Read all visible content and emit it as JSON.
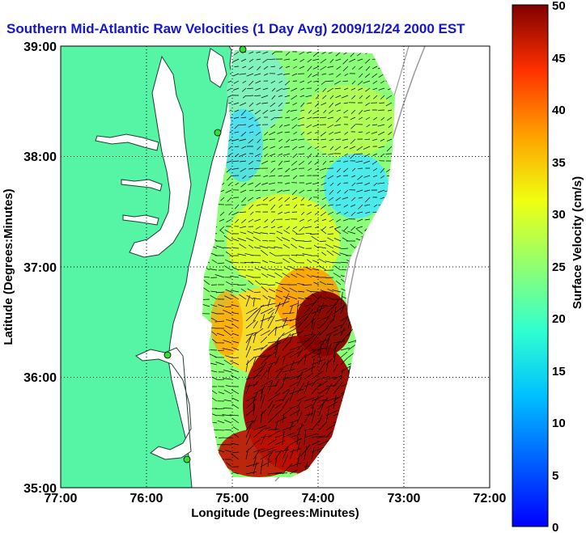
{
  "title": "Southern Mid-Atlantic Raw Velocities (1 Day Avg) 2009/12/24 2000 EST",
  "axes": {
    "xlabel": "Longitude (Degrees:Minutes)",
    "ylabel": "Latitude (Degrees:Minutes)",
    "xticks": [
      "77:00",
      "76:00",
      "75:00",
      "74:00",
      "73:00",
      "72:00"
    ],
    "yticks": [
      "39:00",
      "38:00",
      "37:00",
      "36:00",
      "35:00"
    ],
    "xlim": [
      -77,
      -72
    ],
    "ylim": [
      35,
      39
    ]
  },
  "colorbar": {
    "label": "Surface Velocity (cm/s)",
    "ticks": [
      "50",
      "45",
      "40",
      "35",
      "30",
      "25",
      "20",
      "15",
      "10",
      "5",
      "0"
    ],
    "min": 0,
    "max": 50
  },
  "colors": {
    "land": "#55f5a5",
    "title": "#1414d2",
    "station": "#33dd33"
  },
  "stations": [
    "station-1",
    "station-2",
    "station-3",
    "station-4"
  ]
}
